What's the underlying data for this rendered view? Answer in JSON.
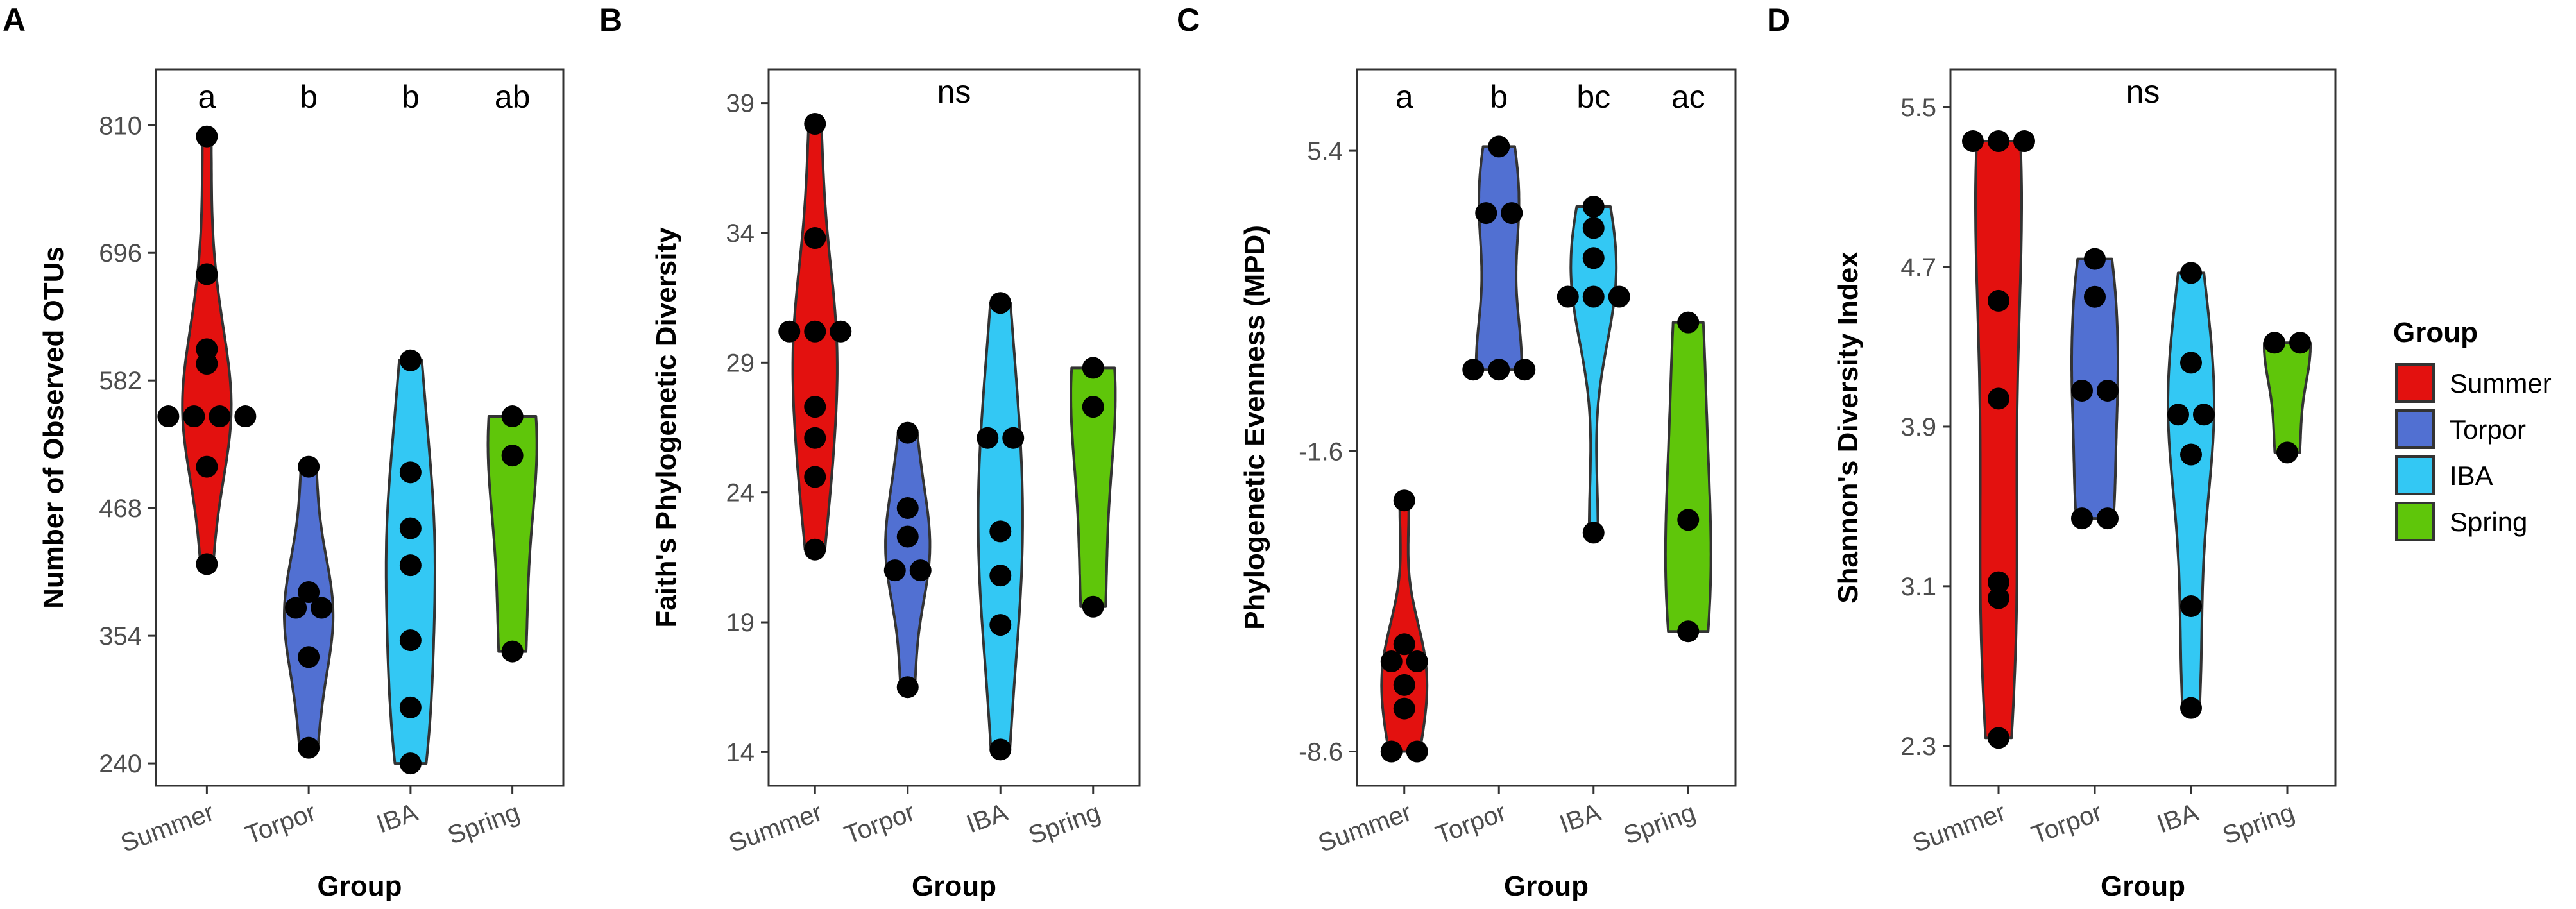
{
  "legend": {
    "title": "Group",
    "items": [
      {
        "label": "Summer",
        "color": "#e3110f"
      },
      {
        "label": "Torpor",
        "color": "#5170d2"
      },
      {
        "label": "IBA",
        "color": "#33c8f4"
      },
      {
        "label": "Spring",
        "color": "#5fc60a"
      }
    ]
  },
  "chart_data": [
    {
      "type": "violin",
      "panel": "A",
      "xlabel": "Group",
      "ylabel": "Number of Observed OTUs",
      "categories": [
        "Summer",
        "Torpor",
        "IBA",
        "Spring"
      ],
      "yticks": [
        240,
        354,
        468,
        582,
        696,
        810
      ],
      "ytick_labels": [
        "240",
        "354",
        "468",
        "582",
        "696",
        "810"
      ],
      "ylim": [
        220,
        860
      ],
      "sig_labels": [
        "a",
        "b",
        "b",
        "ab"
      ],
      "series": [
        {
          "name": "Summer",
          "values": [
            800,
            677,
            610,
            597,
            550,
            550,
            550,
            550,
            505,
            418
          ]
        },
        {
          "name": "Torpor",
          "values": [
            505,
            393,
            379,
            379,
            335,
            254
          ]
        },
        {
          "name": "IBA",
          "values": [
            600,
            500,
            450,
            417,
            350,
            290,
            240
          ]
        },
        {
          "name": "Spring",
          "values": [
            550,
            515,
            340
          ]
        }
      ]
    },
    {
      "type": "violin",
      "panel": "B",
      "xlabel": "Group",
      "ylabel": "Faith's Phylogenetic Diversity",
      "categories": [
        "Summer",
        "Torpor",
        "IBA",
        "Spring"
      ],
      "yticks": [
        14,
        19,
        24,
        29,
        34,
        39
      ],
      "ytick_labels": [
        "14",
        "19",
        "24",
        "29",
        "34",
        "39"
      ],
      "ylim": [
        12.7,
        40.3
      ],
      "sig_labels": [
        "ns"
      ],
      "series": [
        {
          "name": "Summer",
          "values": [
            38.2,
            33.8,
            30.2,
            30.2,
            30.2,
            27.3,
            26.1,
            24.6,
            21.8
          ]
        },
        {
          "name": "Torpor",
          "values": [
            26.3,
            23.4,
            22.3,
            21.0,
            21.0,
            16.5
          ]
        },
        {
          "name": "IBA",
          "values": [
            31.3,
            26.1,
            26.1,
            22.5,
            20.8,
            18.9,
            14.1
          ]
        },
        {
          "name": "Spring",
          "values": [
            28.8,
            27.3,
            19.6
          ]
        }
      ]
    },
    {
      "type": "violin",
      "panel": "C",
      "xlabel": "Group",
      "ylabel": "Phylogenetic Evenness (MPD)",
      "categories": [
        "Summer",
        "Torpor",
        "IBA",
        "Spring"
      ],
      "yticks": [
        -8.6,
        -1.6,
        5.4
      ],
      "ytick_labels": [
        "-8.6",
        "-1.6",
        "5.4"
      ],
      "ylim": [
        -9.4,
        7.3
      ],
      "sig_labels": [
        "a",
        "b",
        "bc",
        "ac"
      ],
      "series": [
        {
          "name": "Summer",
          "values": [
            -2.75,
            -6.1,
            -6.5,
            -6.5,
            -7.05,
            -7.6,
            -8.6,
            -8.6
          ]
        },
        {
          "name": "Torpor",
          "values": [
            5.5,
            3.95,
            3.95,
            0.3,
            0.3,
            0.3
          ]
        },
        {
          "name": "IBA",
          "values": [
            4.1,
            3.6,
            2.9,
            2.0,
            2.0,
            2.0,
            -3.5
          ]
        },
        {
          "name": "Spring",
          "values": [
            1.4,
            -3.2,
            -5.8
          ]
        }
      ]
    },
    {
      "type": "violin",
      "panel": "D",
      "xlabel": "Group",
      "ylabel": "Shannon's Diversity Index",
      "categories": [
        "Summer",
        "Torpor",
        "IBA",
        "Spring"
      ],
      "yticks": [
        2.3,
        3.1,
        3.9,
        4.7,
        5.5
      ],
      "ytick_labels": [
        "2.3",
        "3.1",
        "3.9",
        "4.7",
        "5.5"
      ],
      "ylim": [
        2.1,
        5.69
      ],
      "sig_labels": [
        "ns"
      ],
      "series": [
        {
          "name": "Summer",
          "values": [
            5.33,
            5.33,
            5.33,
            4.53,
            4.04,
            3.12,
            3.04,
            2.34
          ]
        },
        {
          "name": "Torpor",
          "values": [
            4.74,
            4.55,
            4.08,
            4.08,
            3.44,
            3.44
          ]
        },
        {
          "name": "IBA",
          "values": [
            4.67,
            4.22,
            3.96,
            3.96,
            3.76,
            3.0,
            2.49
          ]
        },
        {
          "name": "Spring",
          "values": [
            4.32,
            4.32,
            3.77
          ]
        }
      ]
    }
  ]
}
